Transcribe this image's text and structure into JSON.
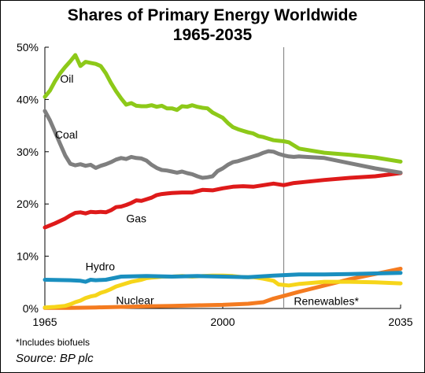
{
  "chart_data": {
    "type": "line",
    "title": "Shares of Primary Energy Worldwide",
    "subtitle": "1965-2035",
    "xlabel": "",
    "ylabel": "",
    "xlim": [
      1965,
      2035
    ],
    "ylim": [
      0,
      50
    ],
    "y_ticks": [
      "0%",
      "10%",
      "20%",
      "30%",
      "40%",
      "50%"
    ],
    "x_ticks": [
      "1965",
      "2000",
      "2035"
    ],
    "projection_start_year": 2012,
    "grid": false,
    "legend": "inline labels",
    "note": "*Includes biofuels",
    "source": "Source: BP plc",
    "series": [
      {
        "name": "Oil",
        "color": "#8DC919",
        "x": [
          1965,
          1966,
          1967,
          1968,
          1969,
          1970,
          1971,
          1972,
          1973,
          1974,
          1975,
          1976,
          1977,
          1978,
          1979,
          1980,
          1981,
          1982,
          1983,
          1984,
          1985,
          1986,
          1987,
          1988,
          1989,
          1990,
          1991,
          1992,
          1993,
          1994,
          1995,
          1996,
          1997,
          1998,
          1999,
          2000,
          2001,
          2002,
          2003,
          2004,
          2005,
          2006,
          2007,
          2008,
          2009,
          2010,
          2011,
          2012,
          2013,
          2014,
          2015,
          2020,
          2025,
          2030,
          2035
        ],
        "y": [
          40.5,
          41.7,
          43.5,
          45,
          46.2,
          47.3,
          48.5,
          46.4,
          47.2,
          47,
          46.8,
          46.4,
          45,
          43.2,
          41.6,
          40.2,
          39,
          39.3,
          38.8,
          38.7,
          38.7,
          38.9,
          38.6,
          38.8,
          38.3,
          38.3,
          38,
          38.7,
          38.6,
          38.9,
          38.6,
          38.4,
          38.3,
          37.5,
          37,
          36.5,
          35.5,
          34.7,
          34.3,
          34,
          33.7,
          33.5,
          33,
          32.8,
          32.5,
          32.2,
          32.1,
          32,
          31.8,
          31.2,
          30.6,
          29.8,
          29.4,
          28.9,
          28.1
        ]
      },
      {
        "name": "Coal",
        "color": "#7F7F7F",
        "x": [
          1965,
          1966,
          1967,
          1968,
          1969,
          1970,
          1971,
          1972,
          1973,
          1974,
          1975,
          1976,
          1977,
          1978,
          1979,
          1980,
          1981,
          1982,
          1983,
          1984,
          1985,
          1986,
          1987,
          1988,
          1989,
          1990,
          1991,
          1992,
          1993,
          1994,
          1995,
          1996,
          1997,
          1998,
          1999,
          2000,
          2001,
          2002,
          2003,
          2004,
          2005,
          2006,
          2007,
          2008,
          2009,
          2010,
          2011,
          2012,
          2013,
          2014,
          2015,
          2020,
          2025,
          2030,
          2035
        ],
        "y": [
          37.8,
          36,
          33.8,
          31.5,
          29.3,
          27.7,
          27.4,
          27.6,
          27.3,
          27.5,
          26.9,
          27.3,
          27.6,
          28,
          28.5,
          28.8,
          28.6,
          29,
          28.8,
          28.7,
          28.3,
          27.5,
          26.9,
          26.5,
          26.4,
          26.2,
          26,
          26.2,
          25.9,
          25.7,
          25.3,
          25,
          25.1,
          25.3,
          26.3,
          26.8,
          27.5,
          28,
          28.2,
          28.5,
          28.8,
          29.1,
          29.4,
          29.8,
          30.1,
          30,
          29.6,
          29.3,
          29.1,
          29,
          29.1,
          28.8,
          27.8,
          26.8,
          26
        ]
      },
      {
        "name": "Gas",
        "color": "#DE1A1A",
        "x": [
          1965,
          1967,
          1969,
          1970,
          1971,
          1972,
          1973,
          1974,
          1975,
          1976,
          1977,
          1978,
          1979,
          1980,
          1981,
          1982,
          1983,
          1984,
          1985,
          1986,
          1987,
          1988,
          1989,
          1990,
          1992,
          1994,
          1996,
          1998,
          2000,
          2002,
          2004,
          2006,
          2008,
          2010,
          2012,
          2014,
          2016,
          2020,
          2025,
          2030,
          2035
        ],
        "y": [
          15.5,
          16.3,
          17.2,
          17.8,
          18.3,
          18.4,
          18.2,
          18.5,
          18.4,
          18.5,
          18.4,
          18.8,
          19.4,
          19.5,
          19.8,
          20.2,
          20.7,
          20.6,
          20.9,
          21.2,
          21.7,
          21.9,
          22,
          22.1,
          22.2,
          22.2,
          22.7,
          22.6,
          23,
          23.3,
          23.4,
          23.3,
          23.6,
          23.9,
          23.6,
          24,
          24.2,
          24.6,
          25,
          25.3,
          25.9
        ]
      },
      {
        "name": "Hydro",
        "color": "#1A8FBF",
        "x": [
          1965,
          1970,
          1972,
          1973,
          1974,
          1975,
          1977,
          1980,
          1985,
          1990,
          1995,
          2000,
          2005,
          2010,
          2015,
          2020,
          2025,
          2030,
          2035
        ],
        "y": [
          5.5,
          5.4,
          5.3,
          5.1,
          5.5,
          5.4,
          5.5,
          6.1,
          6.2,
          6.1,
          6.2,
          6.1,
          6,
          6.3,
          6.5,
          6.5,
          6.6,
          6.7,
          6.8
        ]
      },
      {
        "name": "Nuclear",
        "color": "#F6D51A",
        "x": [
          1965,
          1967,
          1969,
          1970,
          1971,
          1972,
          1973,
          1974,
          1975,
          1976,
          1977,
          1978,
          1979,
          1980,
          1981,
          1982,
          1983,
          1984,
          1985,
          1986,
          1987,
          1988,
          1990,
          1992,
          1994,
          1996,
          1998,
          2000,
          2002,
          2004,
          2006,
          2008,
          2010,
          2011,
          2012,
          2013,
          2015,
          2020,
          2025,
          2030,
          2035
        ],
        "y": [
          0.2,
          0.3,
          0.5,
          0.8,
          1.2,
          1.5,
          2,
          2.3,
          2.5,
          3,
          3.3,
          3.7,
          4.2,
          4.5,
          4.8,
          5.1,
          5.3,
          5.5,
          5.8,
          5.9,
          6,
          6.1,
          6.1,
          6.2,
          6.1,
          6.2,
          6.3,
          6.3,
          6.2,
          6,
          6,
          5.7,
          5.3,
          4.6,
          4.5,
          4.4,
          4.7,
          5.1,
          5.1,
          5,
          4.8
        ]
      },
      {
        "name": "Renewables*",
        "color": "#F47B20",
        "x": [
          1965,
          1970,
          1975,
          1980,
          1985,
          1990,
          1995,
          2000,
          2005,
          2008,
          2010,
          2012,
          2015,
          2020,
          2025,
          2030,
          2035
        ],
        "y": [
          0.1,
          0.1,
          0.2,
          0.3,
          0.4,
          0.5,
          0.6,
          0.7,
          0.9,
          1.2,
          1.9,
          2.4,
          3.2,
          4.4,
          5.6,
          6.6,
          7.6
        ]
      }
    ]
  }
}
